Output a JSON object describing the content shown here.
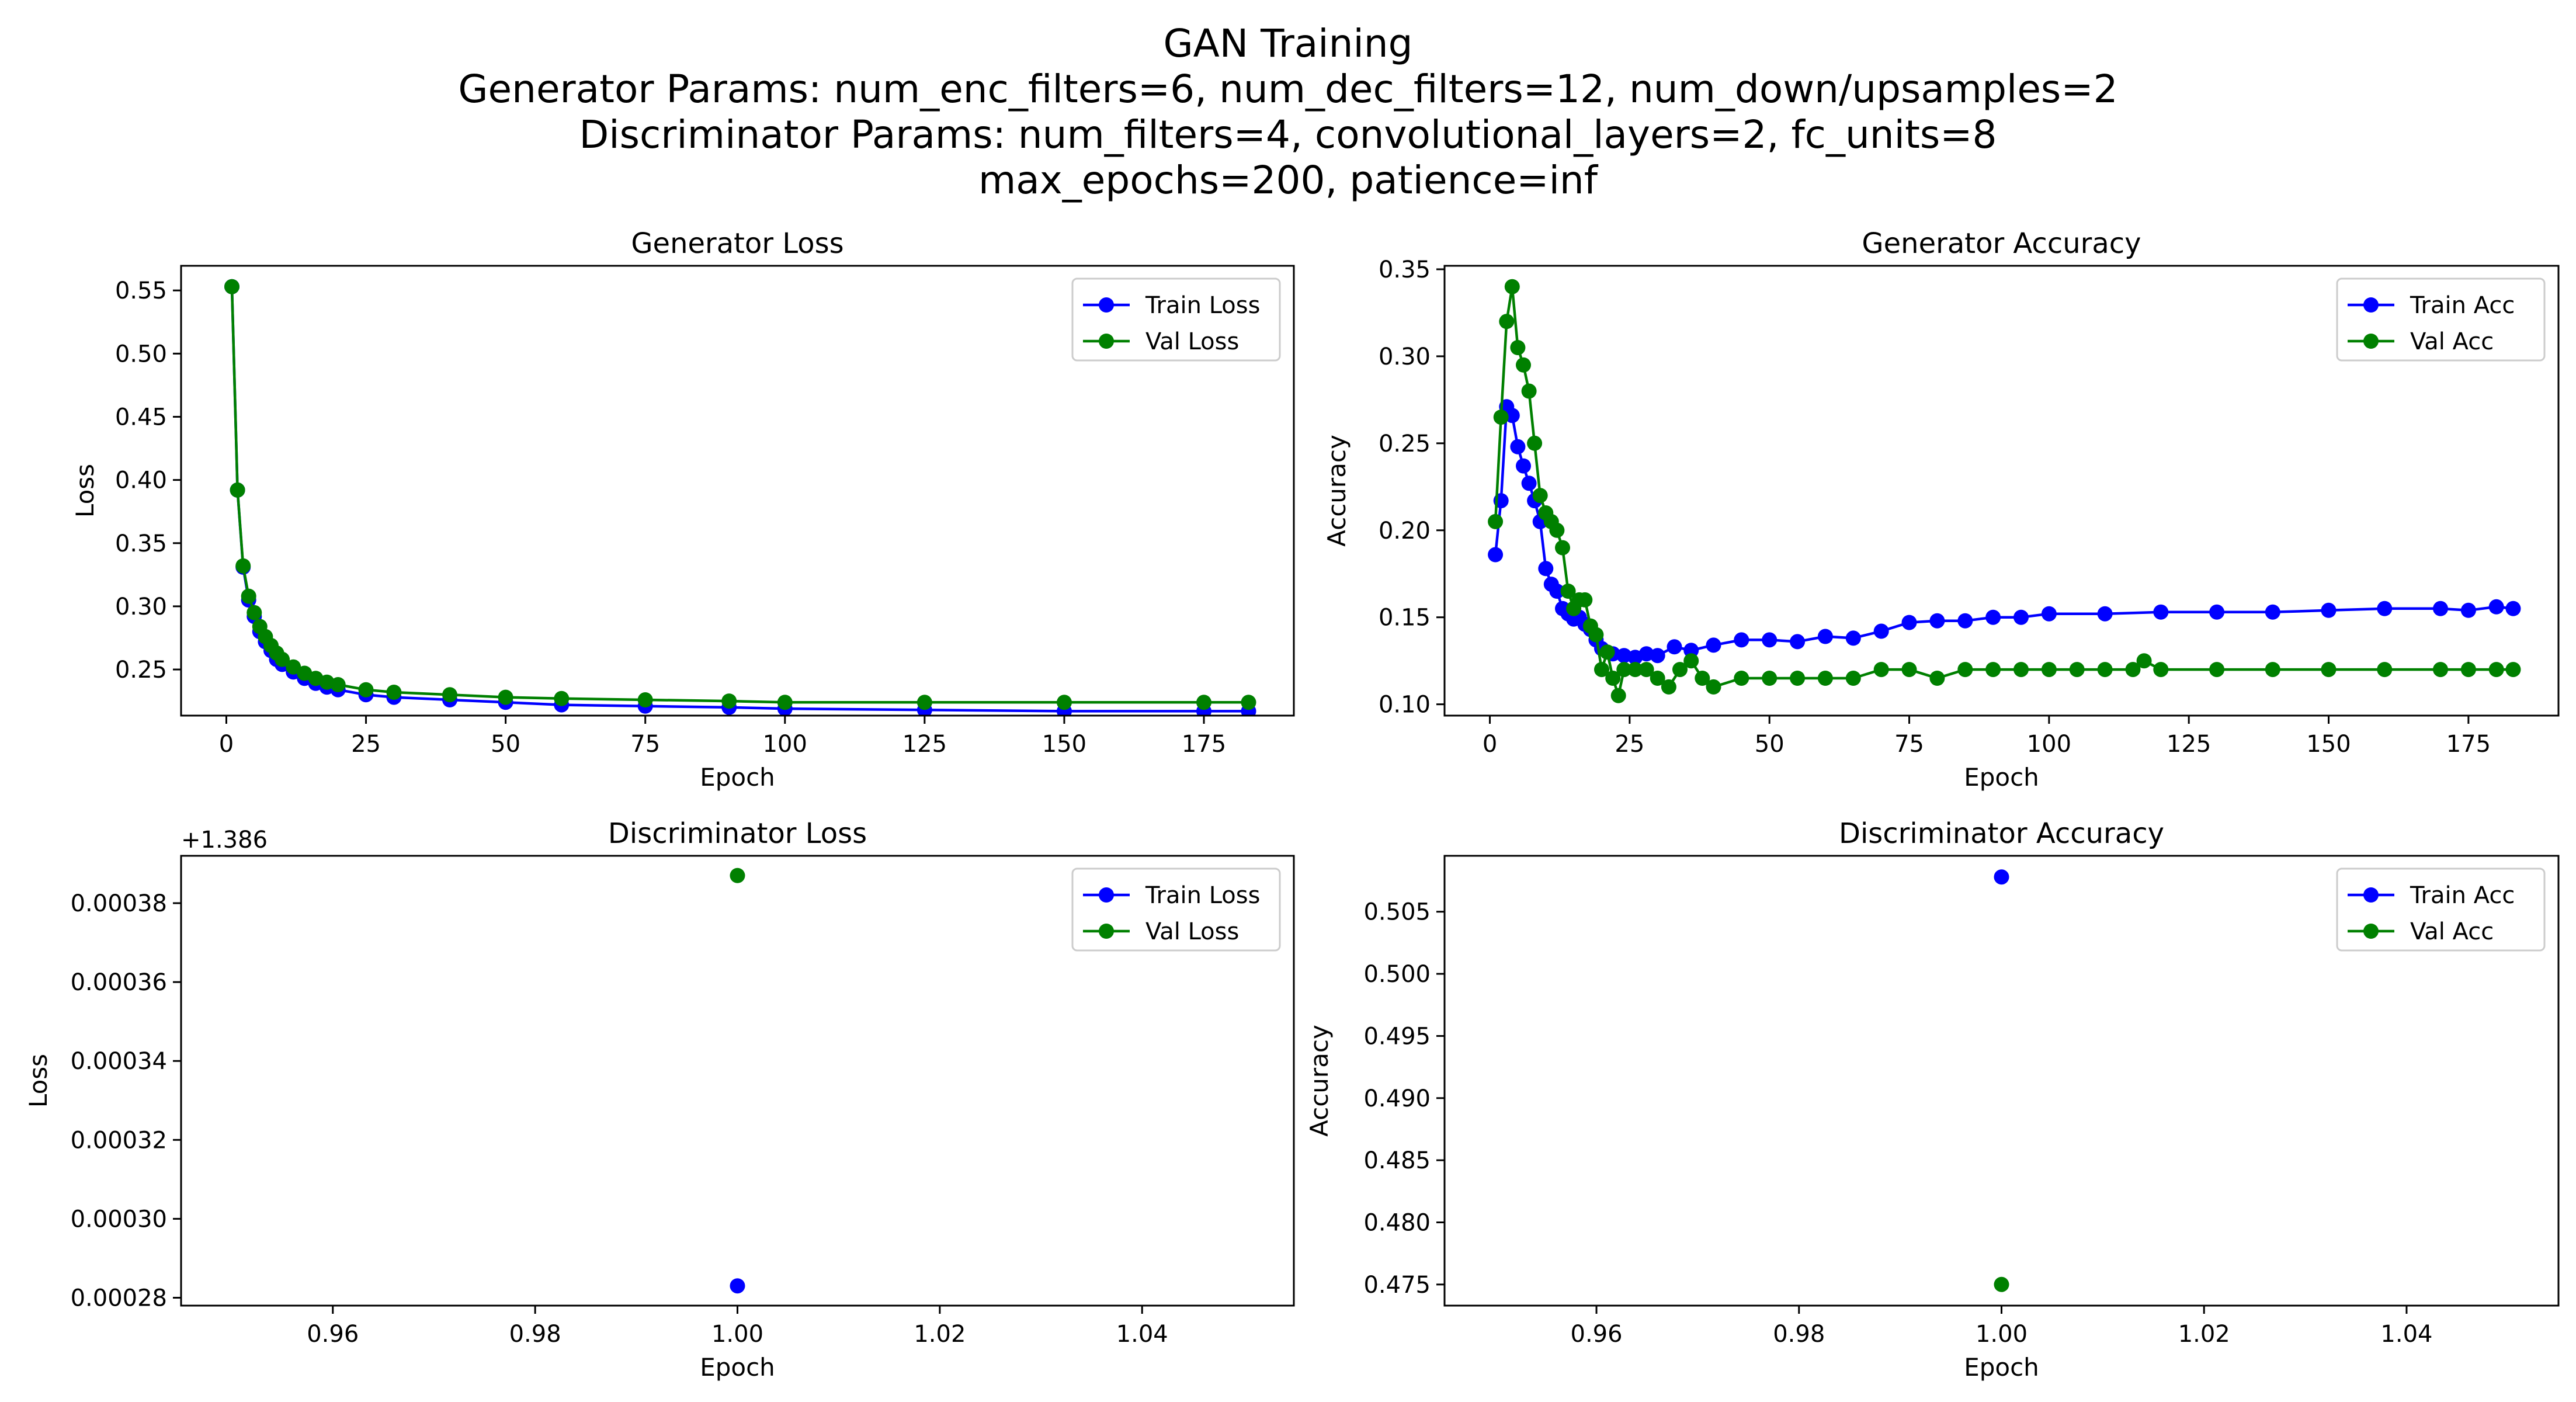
{
  "figure": {
    "suptitle_lines": [
      "GAN Training",
      "Generator Params: num_enc_filters=6, num_dec_filters=12, num_down/upsamples=2",
      "Discriminator Params: num_filters=4, convolutional_layers=2, fc_units=8",
      "max_epochs=200, patience=inf"
    ]
  },
  "colors": {
    "train": "#0000ff",
    "val": "#008000"
  },
  "chart_data": [
    {
      "id": "gen-loss",
      "type": "line",
      "title": "Generator Loss",
      "xlabel": "Epoch",
      "ylabel": "Loss",
      "xlim": [
        -8.1,
        191.1
      ],
      "ylim": [
        0.2135,
        0.5695
      ],
      "xticks": [
        0,
        25,
        50,
        75,
        100,
        125,
        150,
        175
      ],
      "yticks": [
        0.25,
        0.3,
        0.35,
        0.4,
        0.45,
        0.5,
        0.55
      ],
      "ytick_labels": [
        "0.25",
        "0.30",
        "0.35",
        "0.40",
        "0.45",
        "0.50",
        "0.55"
      ],
      "offset_label": "",
      "legend": "top-right",
      "series": [
        {
          "name": "Train Loss",
          "color": "#0000ff",
          "x": [
            1,
            2,
            3,
            4,
            5,
            6,
            7,
            8,
            9,
            10,
            12,
            14,
            16,
            18,
            20,
            25,
            30,
            40,
            50,
            60,
            75,
            90,
            100,
            125,
            150,
            175,
            183
          ],
          "values": [
            0.553,
            0.392,
            0.331,
            0.305,
            0.292,
            0.28,
            0.272,
            0.265,
            0.258,
            0.254,
            0.248,
            0.243,
            0.239,
            0.236,
            0.234,
            0.23,
            0.228,
            0.226,
            0.224,
            0.222,
            0.221,
            0.22,
            0.219,
            0.218,
            0.217,
            0.217,
            0.217
          ]
        },
        {
          "name": "Val Loss",
          "color": "#008000",
          "x": [
            1,
            2,
            3,
            4,
            5,
            6,
            7,
            8,
            9,
            10,
            12,
            14,
            16,
            18,
            20,
            25,
            30,
            40,
            50,
            60,
            75,
            90,
            100,
            125,
            150,
            175,
            183
          ],
          "values": [
            0.553,
            0.392,
            0.332,
            0.308,
            0.295,
            0.284,
            0.276,
            0.269,
            0.263,
            0.258,
            0.252,
            0.247,
            0.243,
            0.24,
            0.238,
            0.234,
            0.232,
            0.23,
            0.228,
            0.227,
            0.226,
            0.225,
            0.224,
            0.224,
            0.224,
            0.224,
            0.224
          ]
        }
      ]
    },
    {
      "id": "gen-acc",
      "type": "line",
      "title": "Generator Accuracy",
      "xlabel": "Epoch",
      "ylabel": "Accuracy",
      "xlim": [
        -8.1,
        191.1
      ],
      "ylim": [
        0.0935,
        0.352
      ],
      "xticks": [
        0,
        25,
        50,
        75,
        100,
        125,
        150,
        175
      ],
      "yticks": [
        0.1,
        0.15,
        0.2,
        0.25,
        0.3,
        0.35
      ],
      "ytick_labels": [
        "0.10",
        "0.15",
        "0.20",
        "0.25",
        "0.30",
        "0.35"
      ],
      "offset_label": "",
      "legend": "top-right",
      "series": [
        {
          "name": "Train Acc",
          "color": "#0000ff",
          "x": [
            1,
            2,
            3,
            4,
            5,
            6,
            7,
            8,
            9,
            10,
            11,
            12,
            13,
            14,
            15,
            16,
            17,
            18,
            19,
            20,
            22,
            24,
            26,
            28,
            30,
            33,
            36,
            40,
            45,
            50,
            55,
            60,
            65,
            70,
            75,
            80,
            85,
            90,
            95,
            100,
            110,
            120,
            130,
            140,
            150,
            160,
            170,
            175,
            180,
            183
          ],
          "values": [
            0.186,
            0.217,
            0.271,
            0.266,
            0.248,
            0.237,
            0.227,
            0.217,
            0.205,
            0.178,
            0.169,
            0.165,
            0.155,
            0.152,
            0.149,
            0.15,
            0.146,
            0.143,
            0.137,
            0.132,
            0.129,
            0.128,
            0.127,
            0.129,
            0.128,
            0.133,
            0.131,
            0.134,
            0.137,
            0.137,
            0.136,
            0.139,
            0.138,
            0.142,
            0.147,
            0.148,
            0.148,
            0.15,
            0.15,
            0.152,
            0.152,
            0.153,
            0.153,
            0.153,
            0.154,
            0.155,
            0.155,
            0.154,
            0.156,
            0.155
          ]
        },
        {
          "name": "Val Acc",
          "color": "#008000",
          "x": [
            1,
            2,
            3,
            4,
            5,
            6,
            7,
            8,
            9,
            10,
            11,
            12,
            13,
            14,
            15,
            16,
            17,
            18,
            19,
            20,
            21,
            22,
            23,
            24,
            26,
            28,
            30,
            32,
            34,
            36,
            38,
            40,
            45,
            50,
            55,
            60,
            65,
            70,
            75,
            80,
            85,
            90,
            95,
            100,
            105,
            110,
            115,
            117,
            120,
            130,
            140,
            150,
            160,
            170,
            175,
            180,
            183
          ],
          "values": [
            0.205,
            0.265,
            0.32,
            0.34,
            0.305,
            0.295,
            0.28,
            0.25,
            0.22,
            0.21,
            0.205,
            0.2,
            0.19,
            0.165,
            0.155,
            0.16,
            0.16,
            0.145,
            0.14,
            0.12,
            0.13,
            0.115,
            0.105,
            0.12,
            0.12,
            0.12,
            0.115,
            0.11,
            0.12,
            0.125,
            0.115,
            0.11,
            0.115,
            0.115,
            0.115,
            0.115,
            0.115,
            0.12,
            0.12,
            0.115,
            0.12,
            0.12,
            0.12,
            0.12,
            0.12,
            0.12,
            0.12,
            0.125,
            0.12,
            0.12,
            0.12,
            0.12,
            0.12,
            0.12,
            0.12,
            0.12,
            0.12
          ]
        }
      ]
    },
    {
      "id": "disc-loss",
      "type": "scatter",
      "title": "Discriminator Loss",
      "xlabel": "Epoch",
      "ylabel": "Loss",
      "xlim": [
        0.945,
        1.055
      ],
      "ylim": [
        0.000278,
        0.000392
      ],
      "xticks": [
        0.96,
        0.98,
        1.0,
        1.02,
        1.04
      ],
      "yticks": [
        0.00028,
        0.0003,
        0.00032,
        0.00034,
        0.00036,
        0.00038
      ],
      "ytick_labels": [
        "0.00028",
        "0.00030",
        "0.00032",
        "0.00034",
        "0.00036",
        "0.00038"
      ],
      "offset_label": "+1.386",
      "legend": "top-right",
      "series": [
        {
          "name": "Train Loss",
          "color": "#0000ff",
          "x": [
            1.0
          ],
          "values": [
            0.000283
          ]
        },
        {
          "name": "Val Loss",
          "color": "#008000",
          "x": [
            1.0
          ],
          "values": [
            0.000387
          ]
        }
      ]
    },
    {
      "id": "disc-acc",
      "type": "scatter",
      "title": "Discriminator Accuracy",
      "xlabel": "Epoch",
      "ylabel": "Accuracy",
      "xlim": [
        0.945,
        1.055
      ],
      "ylim": [
        0.4733,
        0.5095
      ],
      "xticks": [
        0.96,
        0.98,
        1.0,
        1.02,
        1.04
      ],
      "yticks": [
        0.475,
        0.48,
        0.485,
        0.49,
        0.495,
        0.5,
        0.505
      ],
      "ytick_labels": [
        "0.475",
        "0.480",
        "0.485",
        "0.490",
        "0.495",
        "0.500",
        "0.505"
      ],
      "offset_label": "",
      "legend": "top-right",
      "series": [
        {
          "name": "Train Acc",
          "color": "#0000ff",
          "x": [
            1.0
          ],
          "values": [
            0.5078
          ]
        },
        {
          "name": "Val Acc",
          "color": "#008000",
          "x": [
            1.0
          ],
          "values": [
            0.475
          ]
        }
      ]
    }
  ]
}
